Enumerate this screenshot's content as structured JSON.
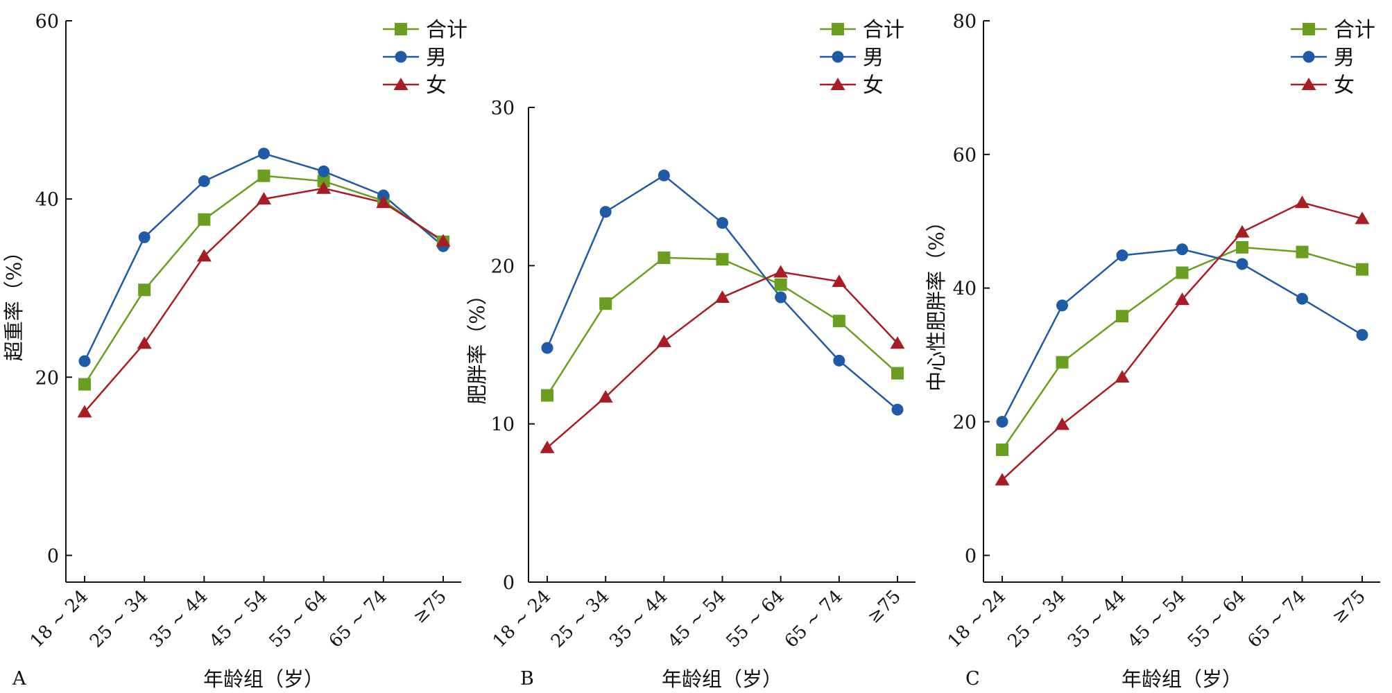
{
  "figure": {
    "colors": {
      "total": "#6a9e1f",
      "male": "#1f5aa6",
      "female": "#a81c24",
      "axis": "#111111"
    },
    "legend_labels": [
      "合计",
      "男",
      "女"
    ]
  },
  "chart_data": [
    {
      "type": "line",
      "panel_label": "A",
      "title": "",
      "xlabel": "年龄组（岁）",
      "ylabel": "超重率（%）",
      "categories": [
        "18 ~ 24",
        "25 ~ 34",
        "35 ~ 44",
        "45 ~ 54",
        "55 ~ 64",
        "65 ~ 74",
        "≥75"
      ],
      "ylim": [
        -3,
        60
      ],
      "yticks": [
        0,
        20,
        40,
        60
      ],
      "grid": false,
      "legend_position": "top-right",
      "series": [
        {
          "name": "合计",
          "marker": "square",
          "values": [
            19.2,
            29.8,
            37.7,
            42.6,
            42.0,
            39.8,
            35.2
          ]
        },
        {
          "name": "男",
          "marker": "circle",
          "values": [
            21.8,
            35.7,
            42.0,
            45.1,
            43.1,
            40.4,
            34.7
          ]
        },
        {
          "name": "女",
          "marker": "triangle",
          "values": [
            16.1,
            23.8,
            33.6,
            40.0,
            41.2,
            39.6,
            35.3
          ]
        }
      ]
    },
    {
      "type": "line",
      "panel_label": "B",
      "title": "",
      "xlabel": "年龄组（岁）",
      "ylabel": "肥胖率（%）",
      "categories": [
        "18 ~ 24",
        "25 ~ 34",
        "35 ~ 44",
        "45 ~ 54",
        "55 ~ 64",
        "65 ~ 74",
        "≥75"
      ],
      "ylim": [
        0,
        30
      ],
      "yticks": [
        0,
        10,
        20,
        30
      ],
      "grid": false,
      "legend_position": "top-right",
      "series": [
        {
          "name": "合计",
          "marker": "square",
          "values": [
            11.8,
            17.6,
            20.5,
            20.4,
            18.8,
            16.5,
            13.2
          ]
        },
        {
          "name": "男",
          "marker": "circle",
          "values": [
            14.8,
            23.4,
            25.7,
            22.7,
            18.0,
            14.0,
            10.9
          ]
        },
        {
          "name": "女",
          "marker": "triangle",
          "values": [
            8.5,
            11.7,
            15.2,
            18.0,
            19.6,
            19.0,
            15.1
          ]
        }
      ]
    },
    {
      "type": "line",
      "panel_label": "C",
      "title": "",
      "xlabel": "年龄组（岁）",
      "ylabel": "中心性肥胖率（%）",
      "categories": [
        "18 ~ 24",
        "25 ~ 34",
        "35 ~ 44",
        "45 ~ 54",
        "55 ~ 64",
        "65 ~ 74",
        "≥75"
      ],
      "ylim": [
        -4,
        80
      ],
      "yticks": [
        0,
        20,
        40,
        60,
        80
      ],
      "grid": false,
      "legend_position": "top-right",
      "series": [
        {
          "name": "合计",
          "marker": "square",
          "values": [
            15.8,
            28.9,
            35.8,
            42.3,
            46.1,
            45.4,
            42.8
          ]
        },
        {
          "name": "男",
          "marker": "circle",
          "values": [
            20.0,
            37.4,
            44.9,
            45.8,
            43.6,
            38.4,
            33.0
          ]
        },
        {
          "name": "女",
          "marker": "triangle",
          "values": [
            11.3,
            19.6,
            26.7,
            38.3,
            48.4,
            52.8,
            50.4
          ]
        }
      ]
    }
  ]
}
